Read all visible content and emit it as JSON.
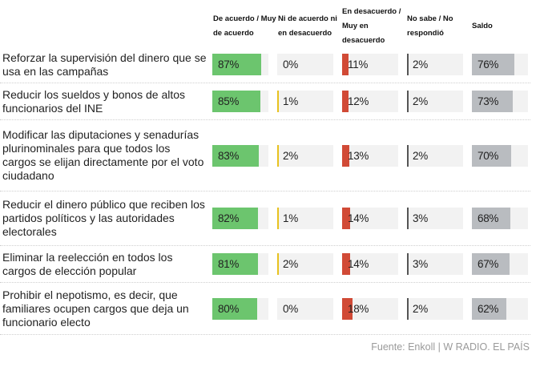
{
  "chart_data": {
    "type": "table",
    "title": "",
    "columns": [
      {
        "key": "agree",
        "label": "De acuerdo / Muy de acuerdo",
        "color": "#6cc56e"
      },
      {
        "key": "neutral",
        "label": "Ni de acuerdo ni en desacuerdo",
        "color": "#e8c21e"
      },
      {
        "key": "disagree",
        "label": "En desacuerdo / Muy en desacuerdo",
        "color": "#d14a36"
      },
      {
        "key": "dk",
        "label": "No sabe / No respondió",
        "color": "#555555"
      },
      {
        "key": "balance",
        "label": "Saldo",
        "color": "#b9bcc0"
      }
    ],
    "rows": [
      {
        "label": "Reforzar la supervisión del dinero que se usa en las campañas",
        "values": [
          87,
          0,
          11,
          2,
          76
        ],
        "display": [
          "87%",
          "0%",
          "11%",
          "2%",
          "76%"
        ]
      },
      {
        "label": "Reducir los sueldos y bonos de altos funcionarios del INE",
        "values": [
          85,
          1,
          12,
          2,
          73
        ],
        "display": [
          "85%",
          "1%",
          "12%",
          "2%",
          "73%"
        ]
      },
      {
        "label": "Modificar las diputaciones y senadurías plurinominales para que todos los cargos se elijan directamente por el voto ciudadano",
        "values": [
          83,
          2,
          13,
          2,
          70
        ],
        "display": [
          "83%",
          "2%",
          "13%",
          "2%",
          "70%"
        ]
      },
      {
        "label": "Reducir el dinero público que reciben los partidos políticos y las autoridades electorales",
        "values": [
          82,
          1,
          14,
          3,
          68
        ],
        "display": [
          "82%",
          "1%",
          "14%",
          "3%",
          "68%"
        ]
      },
      {
        "label": "Eliminar la reelección en todos los cargos de elección popular",
        "values": [
          81,
          2,
          14,
          3,
          67
        ],
        "display": [
          "81%",
          "2%",
          "14%",
          "3%",
          "67%"
        ]
      },
      {
        "label": "Prohibir el nepotismo, es decir, que familiares ocupen cargos que deja un funcionario electo",
        "values": [
          80,
          0,
          18,
          2,
          62
        ],
        "display": [
          "80%",
          "0%",
          "18%",
          "2%",
          "62%"
        ]
      }
    ],
    "source": "Fuente: Enkoll | W RADIO. EL PAÍS"
  }
}
